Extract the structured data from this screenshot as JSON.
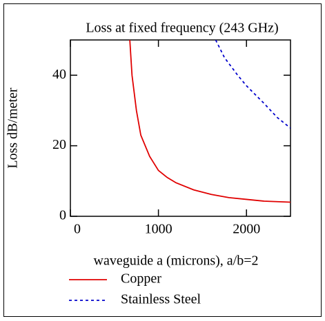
{
  "chart_data": {
    "type": "line",
    "title": "Loss at fixed frequency (243 GHz)",
    "x_label": "waveguide a (microns), a/b=2",
    "y_label": "Loss dB/meter",
    "xlim": [
      0,
      2500
    ],
    "xticks": [
      0,
      1000,
      2000
    ],
    "ylim": [
      0,
      50
    ],
    "yticks": [
      0,
      20,
      40
    ],
    "legend": "bottom",
    "series": [
      {
        "name": "Copper",
        "color": "#e00000",
        "dash": false,
        "x": [
          675,
          700,
          750,
          800,
          900,
          1000,
          1100,
          1200,
          1400,
          1600,
          1800,
          2000,
          2200,
          2500
        ],
        "values": [
          50,
          40,
          30,
          23,
          17,
          13,
          11,
          9.5,
          7.5,
          6.2,
          5.3,
          4.8,
          4.3,
          4.0
        ]
      },
      {
        "name": "Stainless Steel",
        "color": "#0000cc",
        "dash": true,
        "x": [
          1650,
          1750,
          1900,
          2000,
          2200,
          2350,
          2500
        ],
        "values": [
          50,
          45,
          40,
          37,
          32,
          28,
          25
        ]
      }
    ]
  }
}
